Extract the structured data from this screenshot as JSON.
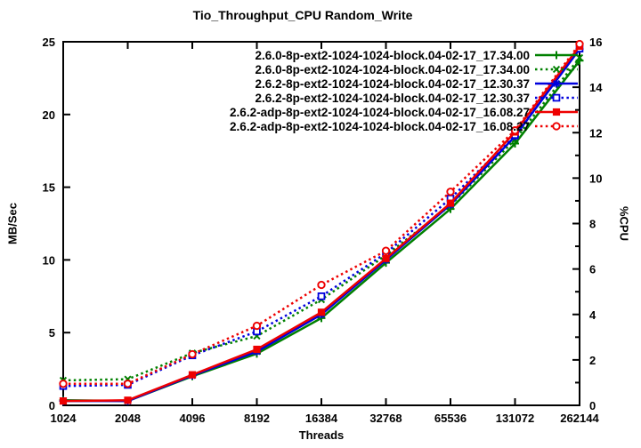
{
  "chart_data": {
    "type": "line",
    "title": "Tio_Throughput_CPU Random_Write",
    "xlabel": "Threads",
    "ylabel_left": "MB/Sec",
    "ylabel_right": "%CPU",
    "x_scale": "log2",
    "grid": false,
    "legend_position": "top-right-inside",
    "categories": [
      "1024",
      "2048",
      "4096",
      "8192",
      "16384",
      "32768",
      "65536",
      "131072",
      "262144"
    ],
    "y_left": {
      "min": 0,
      "max": 25,
      "ticks": [
        0,
        5,
        10,
        15,
        20,
        25
      ]
    },
    "y_right": {
      "min": 0,
      "max": 16,
      "ticks": [
        0,
        2,
        4,
        6,
        8,
        10,
        12,
        14,
        16
      ],
      "minor_step": 1
    },
    "series": [
      {
        "name": "2.6.0-8p-ext2-1024-1024-block.04-02-17_17.34.00",
        "color": "#008000",
        "axis": "left",
        "line": "solid",
        "marker": "plus",
        "values": [
          0.35,
          0.3,
          2.0,
          3.55,
          6.0,
          9.8,
          13.5,
          18.0,
          23.7
        ]
      },
      {
        "name": "2.6.0-8p-ext2-1024-1024-block.04-02-17_17.34.00",
        "color": "#008000",
        "axis": "right",
        "line": "dashed",
        "marker": "cross",
        "values": [
          1.1,
          1.15,
          2.3,
          3.05,
          4.65,
          6.6,
          8.8,
          11.7,
          15.3
        ]
      },
      {
        "name": "2.6.2-8p-ext2-1024-1024-block.04-02-17_12.30.37",
        "color": "#0000dd",
        "axis": "left",
        "line": "solid",
        "marker": "asterisk",
        "values": [
          0.3,
          0.3,
          2.05,
          3.7,
          6.25,
          10.0,
          13.8,
          18.5,
          24.5
        ]
      },
      {
        "name": "2.6.2-8p-ext2-1024-1024-block.04-02-17_12.30.37",
        "color": "#0000dd",
        "axis": "right",
        "line": "dashed",
        "marker": "square-open",
        "values": [
          0.85,
          0.9,
          2.2,
          3.25,
          4.8,
          6.7,
          9.1,
          11.9,
          15.7
        ]
      },
      {
        "name": "2.6.2-adp-8p-ext2-1024-1024-block.04-02-17_16.08.27",
        "color": "#ee0000",
        "axis": "left",
        "line": "solid",
        "marker": "square-filled",
        "values": [
          0.3,
          0.35,
          2.1,
          3.85,
          6.4,
          10.1,
          13.9,
          18.8,
          24.7
        ]
      },
      {
        "name": "2.6.2-adp-8p-ext2-1024-1024-block.04-02-17_16.08.27",
        "color": "#ee0000",
        "axis": "right",
        "line": "dashed",
        "marker": "circle-open",
        "values": [
          0.95,
          0.95,
          2.25,
          3.5,
          5.3,
          6.8,
          9.4,
          12.1,
          15.9
        ]
      }
    ],
    "colors": {
      "axis": "#000000",
      "background": "#ffffff"
    }
  }
}
